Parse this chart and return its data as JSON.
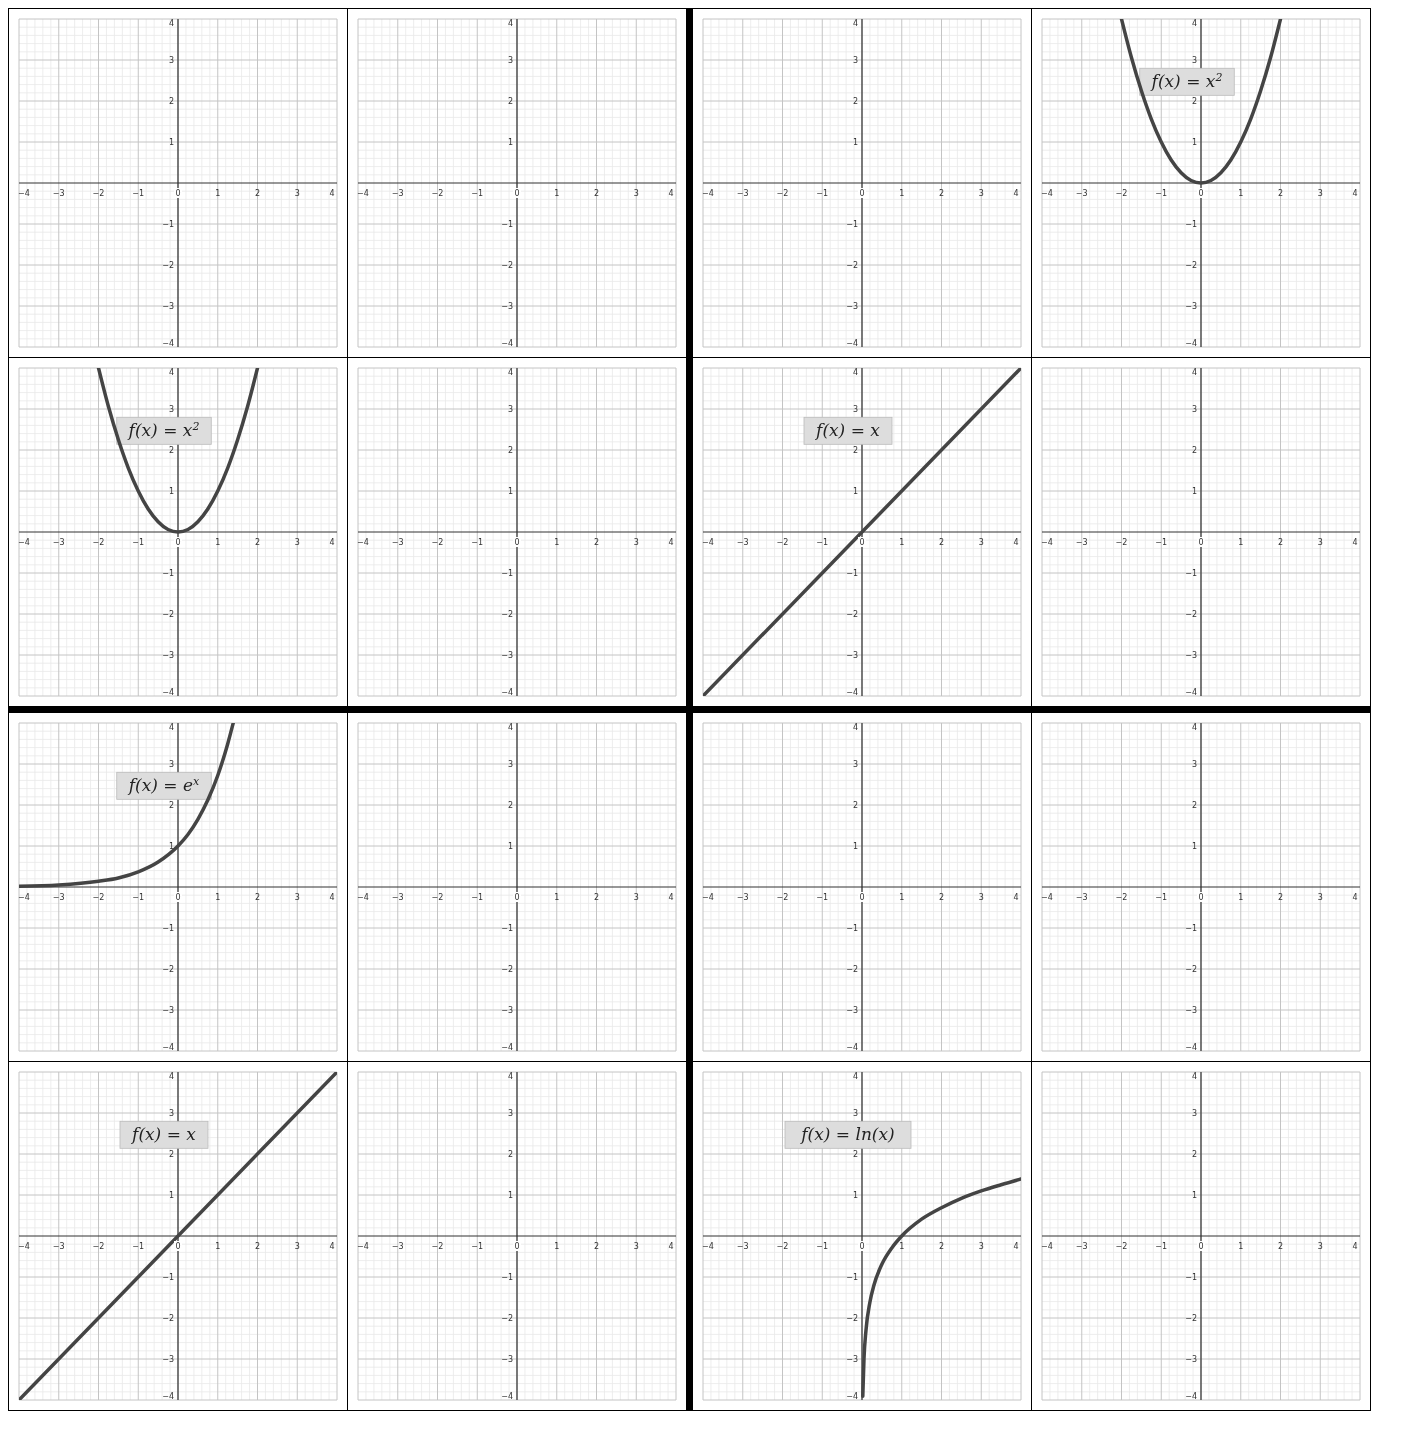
{
  "chart_data": [
    {
      "type": "line",
      "xlim": [
        -4,
        4
      ],
      "ylim": [
        -4,
        4
      ],
      "xticks": [
        -4,
        -3,
        -2,
        -1,
        0,
        1,
        2,
        3,
        4
      ],
      "yticks": [
        -4,
        -3,
        -2,
        -1,
        1,
        2,
        3,
        4
      ],
      "grid": true
    },
    {
      "type": "line",
      "xlim": [
        -4,
        4
      ],
      "ylim": [
        -4,
        4
      ],
      "xticks": [
        -4,
        -3,
        -2,
        -1,
        0,
        1,
        2,
        3,
        4
      ],
      "yticks": [
        -4,
        -3,
        -2,
        -1,
        1,
        2,
        3,
        4
      ],
      "grid": true
    },
    {
      "type": "line",
      "xlim": [
        -4,
        4
      ],
      "ylim": [
        -4,
        4
      ],
      "xticks": [
        -4,
        -3,
        -2,
        -1,
        0,
        1,
        2,
        3,
        4
      ],
      "yticks": [
        -4,
        -3,
        -2,
        -1,
        1,
        2,
        3,
        4
      ],
      "grid": true
    },
    {
      "type": "line",
      "xlim": [
        -4,
        4
      ],
      "ylim": [
        -4,
        4
      ],
      "xticks": [
        -4,
        -3,
        -2,
        -1,
        0,
        1,
        2,
        3,
        4
      ],
      "yticks": [
        -4,
        -3,
        -2,
        -1,
        1,
        2,
        3,
        4
      ],
      "grid": true,
      "annotations": [
        "f(x) = x$^{2}$"
      ],
      "series": [
        {
          "color": "#444444",
          "x": [
            -2,
            -1.75,
            -1.5,
            -1.25,
            -1,
            -0.75,
            -0.5,
            -0.25,
            0,
            0.25,
            0.5,
            0.75,
            1,
            1.25,
            1.5,
            1.75,
            2
          ],
          "values": [
            4,
            3.06,
            2.25,
            1.56,
            1,
            0.56,
            0.25,
            0.06,
            0,
            0.06,
            0.25,
            0.56,
            1,
            1.56,
            2.25,
            3.06,
            4
          ]
        }
      ]
    },
    {
      "type": "line",
      "xlim": [
        -4,
        4
      ],
      "ylim": [
        -4,
        4
      ],
      "xticks": [
        -4,
        -3,
        -2,
        -1,
        0,
        1,
        2,
        3,
        4
      ],
      "yticks": [
        -4,
        -3,
        -2,
        -1,
        1,
        2,
        3,
        4
      ],
      "grid": true,
      "annotations": [
        "f(x) = x$^{2}$"
      ],
      "series": [
        {
          "color": "#444444",
          "x": [
            -2,
            -1.75,
            -1.5,
            -1.25,
            -1,
            -0.75,
            -0.5,
            -0.25,
            0,
            0.25,
            0.5,
            0.75,
            1,
            1.25,
            1.5,
            1.75,
            2
          ],
          "values": [
            4,
            3.06,
            2.25,
            1.56,
            1,
            0.56,
            0.25,
            0.06,
            0,
            0.06,
            0.25,
            0.56,
            1,
            1.56,
            2.25,
            3.06,
            4
          ]
        }
      ]
    },
    {
      "type": "line",
      "xlim": [
        -4,
        4
      ],
      "ylim": [
        -4,
        4
      ],
      "xticks": [
        -4,
        -3,
        -2,
        -1,
        0,
        1,
        2,
        3,
        4
      ],
      "yticks": [
        -4,
        -3,
        -2,
        -1,
        1,
        2,
        3,
        4
      ],
      "grid": true
    },
    {
      "type": "line",
      "xlim": [
        -4,
        4
      ],
      "ylim": [
        -4,
        4
      ],
      "xticks": [
        -4,
        -3,
        -2,
        -1,
        0,
        1,
        2,
        3,
        4
      ],
      "yticks": [
        -4,
        -3,
        -2,
        -1,
        1,
        2,
        3,
        4
      ],
      "grid": true,
      "annotations": [
        "f(x) = x"
      ],
      "series": [
        {
          "color": "#444444",
          "x": [
            -4,
            4
          ],
          "values": [
            -4,
            4
          ]
        }
      ]
    },
    {
      "type": "line",
      "xlim": [
        -4,
        4
      ],
      "ylim": [
        -4,
        4
      ],
      "xticks": [
        -4,
        -3,
        -2,
        -1,
        0,
        1,
        2,
        3,
        4
      ],
      "yticks": [
        -4,
        -3,
        -2,
        -1,
        1,
        2,
        3,
        4
      ],
      "grid": true
    },
    {
      "type": "line",
      "xlim": [
        -4,
        4
      ],
      "ylim": [
        -4,
        4
      ],
      "xticks": [
        -4,
        -3,
        -2,
        -1,
        0,
        1,
        2,
        3,
        4
      ],
      "yticks": [
        -4,
        -3,
        -2,
        -1,
        1,
        2,
        3,
        4
      ],
      "grid": true,
      "annotations": [
        "f(x) = e$^{x}$"
      ],
      "series": [
        {
          "color": "#444444",
          "x": [
            -4,
            -3,
            -2,
            -1.5,
            -1,
            -0.5,
            0,
            0.25,
            0.5,
            0.75,
            1,
            1.25,
            1.39
          ],
          "values": [
            0.02,
            0.05,
            0.14,
            0.22,
            0.37,
            0.61,
            1,
            1.28,
            1.65,
            2.12,
            2.72,
            3.49,
            4
          ]
        }
      ]
    },
    {
      "type": "line",
      "xlim": [
        -4,
        4
      ],
      "ylim": [
        -4,
        4
      ],
      "xticks": [
        -4,
        -3,
        -2,
        -1,
        0,
        1,
        2,
        3,
        4
      ],
      "yticks": [
        -4,
        -3,
        -2,
        -1,
        1,
        2,
        3,
        4
      ],
      "grid": true
    },
    {
      "type": "line",
      "xlim": [
        -4,
        4
      ],
      "ylim": [
        -4,
        4
      ],
      "xticks": [
        -4,
        -3,
        -2,
        -1,
        0,
        1,
        2,
        3,
        4
      ],
      "yticks": [
        -4,
        -3,
        -2,
        -1,
        1,
        2,
        3,
        4
      ],
      "grid": true
    },
    {
      "type": "line",
      "xlim": [
        -4,
        4
      ],
      "ylim": [
        -4,
        4
      ],
      "xticks": [
        -4,
        -3,
        -2,
        -1,
        0,
        1,
        2,
        3,
        4
      ],
      "yticks": [
        -4,
        -3,
        -2,
        -1,
        1,
        2,
        3,
        4
      ],
      "grid": true
    },
    {
      "type": "line",
      "xlim": [
        -4,
        4
      ],
      "ylim": [
        -4,
        4
      ],
      "xticks": [
        -4,
        -3,
        -2,
        -1,
        0,
        1,
        2,
        3,
        4
      ],
      "yticks": [
        -4,
        -3,
        -2,
        -1,
        1,
        2,
        3,
        4
      ],
      "grid": true,
      "annotations": [
        "f(x) = x"
      ],
      "series": [
        {
          "color": "#444444",
          "x": [
            -4,
            4
          ],
          "values": [
            -4,
            4
          ]
        }
      ]
    },
    {
      "type": "line",
      "xlim": [
        -4,
        4
      ],
      "ylim": [
        -4,
        4
      ],
      "xticks": [
        -4,
        -3,
        -2,
        -1,
        0,
        1,
        2,
        3,
        4
      ],
      "yticks": [
        -4,
        -3,
        -2,
        -1,
        1,
        2,
        3,
        4
      ],
      "grid": true
    },
    {
      "type": "line",
      "xlim": [
        -4,
        4
      ],
      "ylim": [
        -4,
        4
      ],
      "xticks": [
        -4,
        -3,
        -2,
        -1,
        0,
        1,
        2,
        3,
        4
      ],
      "yticks": [
        -4,
        -3,
        -2,
        -1,
        1,
        2,
        3,
        4
      ],
      "grid": true,
      "annotations": [
        "f(x) = ln(x)"
      ],
      "series": [
        {
          "color": "#444444",
          "x": [
            0.02,
            0.05,
            0.1,
            0.2,
            0.3,
            0.5,
            0.75,
            1,
            1.5,
            2,
            2.5,
            3,
            3.5,
            4
          ],
          "values": [
            -3.91,
            -3,
            -2.3,
            -1.61,
            -1.2,
            -0.69,
            -0.29,
            0,
            0.41,
            0.69,
            0.92,
            1.1,
            1.25,
            1.39
          ]
        }
      ]
    },
    {
      "type": "line",
      "xlim": [
        -4,
        4
      ],
      "ylim": [
        -4,
        4
      ],
      "xticks": [
        -4,
        -3,
        -2,
        -1,
        0,
        1,
        2,
        3,
        4
      ],
      "yticks": [
        -4,
        -3,
        -2,
        -1,
        1,
        2,
        3,
        4
      ],
      "grid": true
    }
  ]
}
